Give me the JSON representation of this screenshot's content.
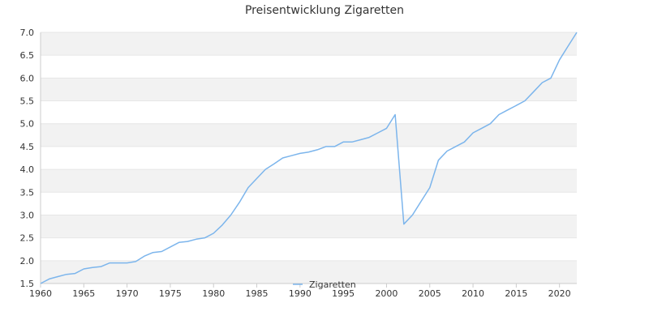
{
  "chart_data": {
    "type": "line",
    "title": "Preisentwicklung Zigaretten",
    "xlabel": "",
    "ylabel": "",
    "xlim": [
      1960,
      2022
    ],
    "ylim": [
      1.5,
      7.0
    ],
    "x_ticks": [
      "1960",
      "1965",
      "1970",
      "1975",
      "1980",
      "1985",
      "1990",
      "1995",
      "2000",
      "2005",
      "2010",
      "2015",
      "2020"
    ],
    "y_ticks": [
      "1.5",
      "2.0",
      "2.5",
      "3.0",
      "3.5",
      "4.0",
      "4.5",
      "5.0",
      "5.5",
      "6.0",
      "6.5",
      "7.0"
    ],
    "grid": "horizontal alternating bands",
    "legend_position": "bottom-center",
    "series": [
      {
        "name": "Zigaretten",
        "color": "#7cb5ec",
        "x": [
          1960,
          1961,
          1962,
          1963,
          1964,
          1965,
          1966,
          1967,
          1968,
          1969,
          1970,
          1971,
          1972,
          1973,
          1974,
          1975,
          1976,
          1977,
          1978,
          1979,
          1980,
          1981,
          1982,
          1983,
          1984,
          1985,
          1986,
          1987,
          1988,
          1989,
          1990,
          1991,
          1992,
          1993,
          1994,
          1995,
          1996,
          1997,
          1998,
          1999,
          2000,
          2001,
          2002,
          2003,
          2004,
          2005,
          2006,
          2007,
          2008,
          2009,
          2010,
          2011,
          2012,
          2013,
          2014,
          2015,
          2016,
          2017,
          2018,
          2019,
          2020,
          2021,
          2022
        ],
        "values": [
          1.5,
          1.6,
          1.65,
          1.7,
          1.72,
          1.82,
          1.85,
          1.87,
          1.95,
          1.95,
          1.95,
          1.98,
          2.1,
          2.18,
          2.2,
          2.3,
          2.4,
          2.42,
          2.47,
          2.5,
          2.6,
          2.78,
          3.0,
          3.28,
          3.6,
          3.8,
          4.0,
          4.12,
          4.25,
          4.3,
          4.35,
          4.38,
          4.43,
          4.5,
          4.5,
          4.6,
          4.6,
          4.65,
          4.7,
          4.8,
          4.9,
          5.2,
          2.8,
          3.0,
          3.3,
          3.6,
          4.2,
          4.4,
          4.5,
          4.6,
          4.8,
          4.9,
          5.0,
          5.2,
          5.3,
          5.4,
          5.5,
          5.7,
          5.9,
          6.0,
          6.4,
          6.7,
          7.0
        ]
      }
    ]
  }
}
